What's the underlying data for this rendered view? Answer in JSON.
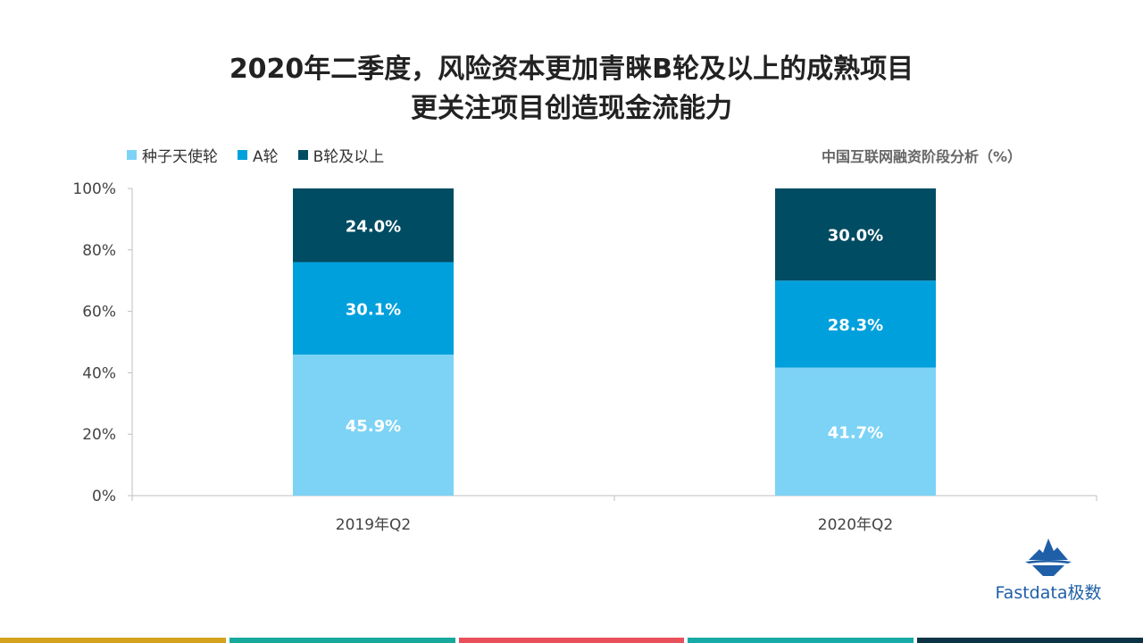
{
  "title": {
    "line1": "2020年二季度，风险资本更加青睐B轮及以上的成熟项目",
    "line2": "更关注项目创造现金流能力"
  },
  "chart_subtitle": "中国互联网融资阶段分析（%）",
  "logo": {
    "icon": "iceberg-icon",
    "text": "Fastdata极数"
  },
  "colors": {
    "seed": "#7dd3f5",
    "a_round": "#00a0dc",
    "b_round": "#004c63",
    "bottom_bar": [
      "#d4a21f",
      "#16a99c",
      "#e8505b",
      "#17aaa6",
      "#0d3446"
    ]
  },
  "chart_data": {
    "type": "bar",
    "stacked": true,
    "categories": [
      "2019年Q2",
      "2020年Q2"
    ],
    "series": [
      {
        "name": "种子天使轮",
        "values": [
          45.9,
          41.7
        ],
        "labels": [
          "45.9%",
          "41.7%"
        ],
        "color": "#7dd3f5"
      },
      {
        "name": "A轮",
        "values": [
          30.1,
          28.3
        ],
        "labels": [
          "30.1%",
          "28.3%"
        ],
        "color": "#00a0dc"
      },
      {
        "name": "B轮及以上",
        "values": [
          24.0,
          30.0
        ],
        "labels": [
          "24.0%",
          "30.0%"
        ],
        "color": "#004c63"
      }
    ],
    "yticks": [
      "0%",
      "20%",
      "40%",
      "60%",
      "80%",
      "100%"
    ],
    "ylim": [
      0,
      100
    ],
    "legend_position": "top-left",
    "grid": false
  }
}
